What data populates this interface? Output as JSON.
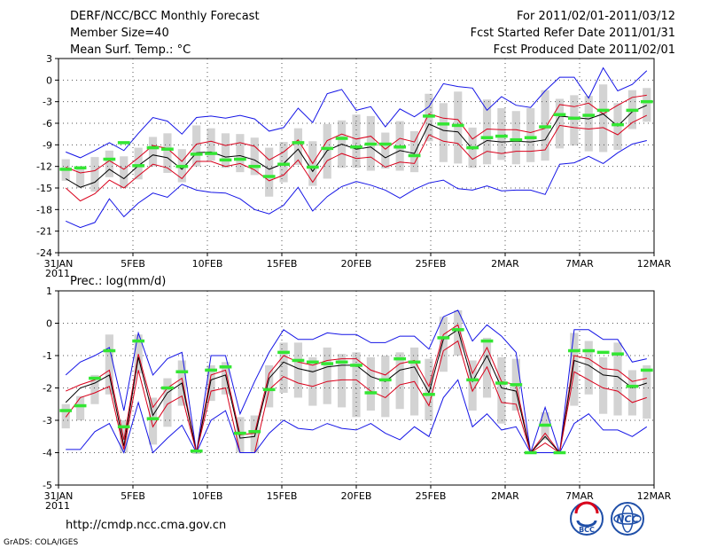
{
  "header": {
    "left_line1": "DERF/NCC/BCC Monthly Forecast",
    "left_line2": "Member Size=40",
    "left_line3": "Mean Surf. Temp.: °C",
    "right_line1": "For 2011/02/01-2011/03/12",
    "right_line2": "Fcst Started Refer Date 2011/01/31",
    "right_line3": "Fcst Produced Date 2011/02/01"
  },
  "footer": {
    "url": "http://cmdp.ncc.cma.gov.cn",
    "credit": "GrADS: COLA/IGES",
    "logo1_text": "BCC",
    "logo2_text": "NCC"
  },
  "colors": {
    "bar": "#d3d3d3",
    "mean": "#000000",
    "std": "#d9001b",
    "envelope": "#1414e6",
    "obs": "#33e633",
    "grid": "#555555",
    "logo_blue": "#1f4fa8",
    "logo_red": "#d9001b"
  },
  "chart_data": [
    {
      "type": "line",
      "title": "Mean Surf. Temp.: °C",
      "x_tick_labels": [
        "31JAN",
        "5FEB",
        "10FEB",
        "15FEB",
        "20FEB",
        "25FEB",
        "2MAR",
        "7MAR",
        "12MAR"
      ],
      "x_tick_year": "2011",
      "y_ticks": [
        "3",
        "0",
        "-3",
        "-6",
        "-9",
        "-12",
        "-15",
        "-18",
        "-21",
        "-24"
      ],
      "ylim": [
        -24,
        3
      ],
      "series": [
        {
          "name": "ensemble_max",
          "values": [
            -10,
            -10.8,
            -9.8,
            -8.7,
            -9.8,
            -7.4,
            -5.2,
            -5.7,
            -7.5,
            -5.2,
            -5,
            -5.3,
            -4.9,
            -5.4,
            -7.1,
            -6.6,
            -3.9,
            -5.9,
            -1.9,
            -1.3,
            -4.2,
            -3.7,
            -6.5,
            -4,
            -5.1,
            -3.7,
            -0.5,
            -0.9,
            -1.1,
            -4.2,
            -2.3,
            -3.5,
            -3.8,
            -1.5,
            0.4,
            0.4,
            -2.5,
            1.7,
            -1.5,
            -0.6,
            1.3
          ]
        },
        {
          "name": "ensemble_plus_std",
          "values": [
            -12.1,
            -12.9,
            -12.6,
            -11.2,
            -12.4,
            -10.8,
            -9.1,
            -9.5,
            -11.3,
            -8.9,
            -8.5,
            -9.1,
            -8.7,
            -9.2,
            -11.1,
            -10,
            -8.3,
            -11.6,
            -8.4,
            -7.5,
            -8.2,
            -7.8,
            -9.6,
            -8.1,
            -8.6,
            -4.7,
            -5.3,
            -5.5,
            -8.2,
            -6.8,
            -6.9,
            -6.9,
            -7.3,
            -6.7,
            -3.4,
            -3.7,
            -3.2,
            -4.7,
            -3.5,
            -2.4,
            -2.1
          ]
        },
        {
          "name": "ensemble_mean",
          "values": [
            -13.7,
            -14.9,
            -14.2,
            -12.4,
            -13.7,
            -11.9,
            -10.4,
            -10.8,
            -12.4,
            -10.1,
            -10,
            -10.7,
            -10.5,
            -11.1,
            -12.4,
            -11.6,
            -9.6,
            -12.7,
            -9.8,
            -8.9,
            -9.6,
            -9.3,
            -10.8,
            -9.8,
            -10.2,
            -6.1,
            -7,
            -7.2,
            -9.6,
            -8.4,
            -8.6,
            -8.5,
            -8.6,
            -8.3,
            -5,
            -5.2,
            -5.4,
            -4.7,
            -6.4,
            -4.4,
            -3.5
          ]
        },
        {
          "name": "ensemble_minus_std",
          "values": [
            -15,
            -16.8,
            -15.8,
            -13.9,
            -15,
            -13.3,
            -11.7,
            -12.2,
            -13.7,
            -11.3,
            -11.3,
            -12,
            -11.6,
            -12.5,
            -14,
            -13.2,
            -11.1,
            -14.2,
            -11.2,
            -10.2,
            -10.9,
            -10.7,
            -12.1,
            -11.4,
            -11.6,
            -7.6,
            -8.5,
            -8.8,
            -11,
            -9.9,
            -10.2,
            -9.9,
            -9.9,
            -9.7,
            -6.3,
            -6.6,
            -6.8,
            -6.6,
            -7.6,
            -5.9,
            -4.9
          ]
        },
        {
          "name": "ensemble_min",
          "values": [
            -19.6,
            -20.5,
            -19.8,
            -16.5,
            -19,
            -17.1,
            -15.7,
            -16.3,
            -14.5,
            -15.3,
            -15.6,
            -15.7,
            -16.5,
            -18,
            -18.6,
            -17.4,
            -14.9,
            -18.2,
            -16.2,
            -14.8,
            -14.1,
            -14.6,
            -15.3,
            -16.4,
            -15.2,
            -14.3,
            -13.9,
            -15.1,
            -15.3,
            -14.7,
            -15.4,
            -15.3,
            -15.3,
            -15.9,
            -11.7,
            -11.5,
            -10.6,
            -11.6,
            -10.1,
            -8.9,
            -8.4
          ]
        },
        {
          "name": "observed",
          "values": [
            -12.4,
            -12.2,
            null,
            -11,
            -8.7,
            -11.9,
            -9.4,
            -9.6,
            -12,
            -10.3,
            -10.2,
            -11.1,
            -11,
            -12,
            -13.4,
            -11.7,
            -8.7,
            -12.1,
            -9.5,
            -8.1,
            -9.3,
            -8.9,
            -8.9,
            -9.3,
            -10.5,
            -5,
            -6.1,
            -6.3,
            -9.4,
            -8,
            -7.8,
            -8.3,
            -8,
            -6.5,
            -4.8,
            -5.3,
            -4.9,
            -4.2,
            -6.2,
            -4.2,
            -3
          ]
        }
      ],
      "spread_bars": {
        "low": [
          -14,
          -15,
          -15.5,
          -13.5,
          -15,
          -13.8,
          -12,
          -12.9,
          -14.2,
          -12,
          -11.2,
          -12.2,
          -12.8,
          -13.2,
          -16.2,
          -14.2,
          -11.8,
          -14.7,
          -13.7,
          -12.2,
          -12.2,
          -12.6,
          -12.3,
          -12.6,
          -12.8,
          -8.5,
          -11.4,
          -11.6,
          -12.2,
          -11.7,
          -11.1,
          -11.7,
          -11.4,
          -11.2,
          -9.5,
          -9.1,
          -9.9,
          -10,
          -9.7,
          -6.8,
          -5.8
        ],
        "high": [
          -11,
          -12.2,
          -10.7,
          -9.8,
          -10.6,
          -9.4,
          -7.9,
          -7.4,
          -9.6,
          -6.3,
          -6.7,
          -7.4,
          -7.5,
          -8,
          -9.4,
          -8.6,
          -6.7,
          -8.5,
          -6.1,
          -5.6,
          -4.8,
          -5,
          -7.3,
          -5.7,
          -7.1,
          -1.9,
          -3.2,
          -1.6,
          -6.6,
          -2.7,
          -3.9,
          -4.3,
          -3.9,
          -1.4,
          -2.6,
          -2.1,
          -2.2,
          -0.6,
          -3.2,
          -1.4,
          -1.1
        ]
      }
    },
    {
      "type": "line",
      "title": "Prec.: log(mm/d)",
      "x_tick_labels": [
        "31JAN",
        "5FEB",
        "10FEB",
        "15FEB",
        "20FEB",
        "25FEB",
        "2MAR",
        "7MAR",
        "12MAR"
      ],
      "x_tick_year": "2011",
      "y_ticks": [
        "1",
        "0",
        "-1",
        "-2",
        "-3",
        "-4",
        "-5"
      ],
      "ylim": [
        -5,
        1
      ],
      "series": [
        {
          "name": "ensemble_max",
          "values": [
            -1.6,
            -1.2,
            -1,
            -0.75,
            -2.7,
            -0.3,
            -1.6,
            -1.1,
            -0.9,
            -4,
            -1,
            -1,
            -2.8,
            -1.8,
            -0.9,
            -0.2,
            -0.5,
            -0.5,
            -0.3,
            -0.35,
            -0.35,
            -0.6,
            -0.6,
            -0.4,
            -0.4,
            -0.8,
            0.2,
            0.4,
            -0.55,
            -0.05,
            -0.4,
            -0.9,
            -4,
            -2.6,
            -4,
            -0.2,
            -0.2,
            -0.5,
            -0.5,
            -1.2,
            -1.1
          ]
        },
        {
          "name": "ensemble_plus_std",
          "values": [
            -2.1,
            -1.9,
            -1.75,
            -1.45,
            -3.6,
            -0.95,
            -2.6,
            -2,
            -1.7,
            -4,
            -1.6,
            -1.45,
            -3.45,
            -3.4,
            -1.55,
            -1,
            -1.2,
            -1.3,
            -1.15,
            -1.1,
            -1.1,
            -1.45,
            -1.6,
            -1.25,
            -1.15,
            -1.95,
            -0.35,
            -0.05,
            -1.55,
            -0.75,
            -1.8,
            -1.9,
            -4,
            -3.4,
            -4,
            -1,
            -1.1,
            -1.4,
            -1.45,
            -1.8,
            -1.7
          ]
        },
        {
          "name": "ensemble_mean",
          "values": [
            -2.45,
            -2,
            -1.85,
            -1.6,
            -3.8,
            -1.05,
            -2.85,
            -2.15,
            -1.85,
            -4,
            -1.75,
            -1.6,
            -3.55,
            -3.5,
            -1.7,
            -1.2,
            -1.4,
            -1.5,
            -1.35,
            -1.3,
            -1.3,
            -1.65,
            -1.8,
            -1.45,
            -1.35,
            -2.15,
            -0.5,
            -0.2,
            -1.8,
            -1,
            -2,
            -2.1,
            -4,
            -3.5,
            -4,
            -1.15,
            -1.3,
            -1.6,
            -1.65,
            -2,
            -1.85
          ]
        },
        {
          "name": "ensemble_minus_std",
          "values": [
            -2.9,
            -2.3,
            -2.15,
            -1.95,
            -3.9,
            -1.45,
            -3.2,
            -2.5,
            -2.25,
            -4,
            -2.1,
            -2,
            -4,
            -4,
            -2.05,
            -1.65,
            -1.85,
            -1.95,
            -1.8,
            -1.75,
            -1.75,
            -2.1,
            -2.3,
            -1.9,
            -1.8,
            -2.55,
            -0.85,
            -0.55,
            -2.1,
            -1.35,
            -2.45,
            -2.5,
            -4,
            -3.7,
            -4,
            -1.5,
            -1.75,
            -2,
            -2.1,
            -2.45,
            -2.3
          ]
        },
        {
          "name": "ensemble_min",
          "values": [
            -3.9,
            -3.9,
            -3.35,
            -3.1,
            -4,
            -2.45,
            -4,
            -3.55,
            -3.15,
            -4,
            -3,
            -2.7,
            -4,
            -4,
            -3.4,
            -3,
            -3.25,
            -3.3,
            -3.1,
            -3.25,
            -3.3,
            -3.1,
            -3.4,
            -3.6,
            -3.2,
            -3.5,
            -2.3,
            -1.75,
            -3.2,
            -2.8,
            -3.3,
            -3.2,
            -4,
            -4,
            -4,
            -3.1,
            -2.8,
            -3.3,
            -3.3,
            -3.5,
            -3.2
          ]
        },
        {
          "name": "observed",
          "values": [
            -2.7,
            -2.55,
            -1.7,
            -0.85,
            -3.2,
            -0.55,
            -2.95,
            -2,
            -1.5,
            -3.95,
            -1.45,
            -1.35,
            -3.4,
            -3.35,
            -2.05,
            -0.9,
            -1.15,
            -1.2,
            -1.25,
            -1.2,
            -1.3,
            -2.15,
            -1.75,
            -1.1,
            -1.2,
            -2.2,
            -0.45,
            -0.2,
            -1.75,
            -0.55,
            -1.85,
            -1.9,
            -4,
            -3.15,
            -4,
            -0.85,
            -0.85,
            -0.9,
            -0.95,
            -1.95,
            -1.45
          ]
        }
      ],
      "spread_bars": {
        "low": [
          -3.25,
          -3,
          -2.5,
          -2.2,
          -4,
          -1.55,
          -3.75,
          -3.2,
          -2.55,
          -4,
          -2.4,
          -2.2,
          -4,
          -4,
          -2.6,
          -2.15,
          -2.3,
          -2.55,
          -2.5,
          -2.6,
          -2.9,
          -2.7,
          -2.9,
          -2.65,
          -2.85,
          -3,
          -1.5,
          -1,
          -2.7,
          -2.3,
          -3.1,
          -2.7,
          -4,
          -3.6,
          -4,
          -2.55,
          -2.2,
          -2.8,
          -2.85,
          -2.85,
          -2.95
        ],
        "high": [
          -2.5,
          -2.25,
          -1.6,
          -0.35,
          -3,
          -0.35,
          -2.3,
          -1.7,
          -1.15,
          -4,
          -1.3,
          -1.2,
          -2.9,
          -2.85,
          -1.3,
          -0.6,
          -0.6,
          -1.05,
          -0.75,
          -0.95,
          -0.9,
          -1.05,
          -1,
          -0.9,
          -0.75,
          -1.1,
          0.2,
          0.4,
          -1.15,
          -0.45,
          -1.05,
          -1.1,
          -4,
          -2.75,
          -4,
          -0.3,
          -0.55,
          -1.05,
          -0.6,
          -1.45,
          -1.3
        ]
      }
    }
  ]
}
